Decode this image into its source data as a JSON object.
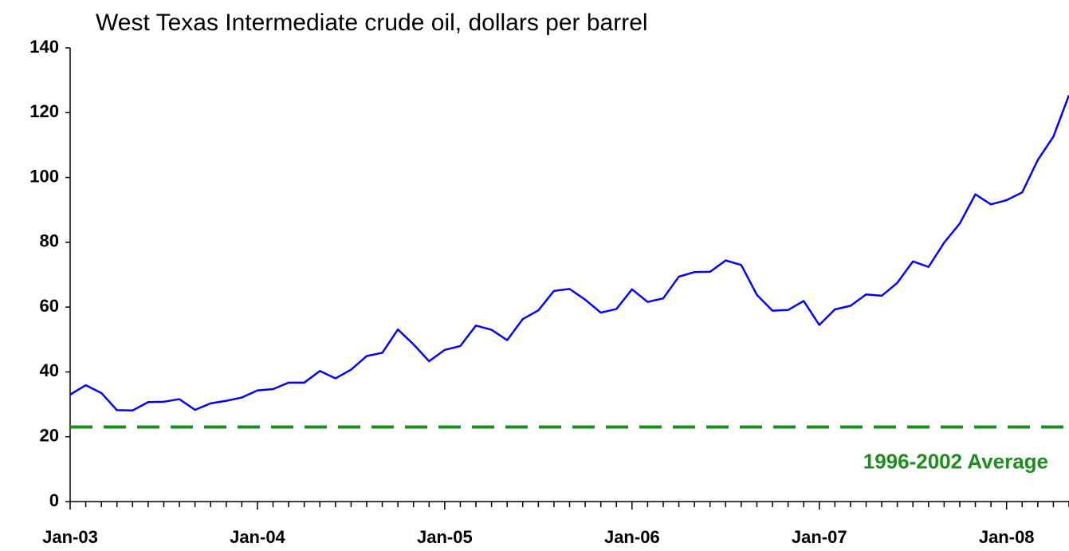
{
  "chart_data": {
    "type": "line",
    "title": "West Texas Intermediate crude oil, dollars per barrel",
    "categories": [
      "Jan-03",
      null,
      null,
      null,
      null,
      null,
      null,
      null,
      null,
      null,
      null,
      null,
      "Jan-04",
      null,
      null,
      null,
      null,
      null,
      null,
      null,
      null,
      null,
      null,
      null,
      "Jan-05",
      null,
      null,
      null,
      null,
      null,
      null,
      null,
      null,
      null,
      null,
      null,
      "Jan-06",
      null,
      null,
      null,
      null,
      null,
      null,
      null,
      null,
      null,
      null,
      null,
      "Jan-07",
      null,
      null,
      null,
      null,
      null,
      null,
      null,
      null,
      null,
      null,
      null,
      "Jan-08",
      null,
      null,
      null,
      null
    ],
    "series": [
      {
        "color": "#0000ff",
        "values": [
          33.0,
          35.9,
          33.5,
          28.2,
          28.1,
          30.7,
          30.8,
          31.6,
          28.3,
          30.3,
          31.1,
          32.1,
          34.3,
          34.7,
          36.7,
          36.7,
          40.3,
          38.0,
          40.7,
          44.9,
          45.9,
          53.1,
          48.5,
          43.3,
          46.8,
          48.0,
          54.3,
          53.0,
          49.8,
          56.3,
          59.0,
          65.0,
          65.6,
          62.3,
          58.3,
          59.4,
          65.5,
          61.6,
          62.7,
          69.4,
          70.8,
          70.9,
          74.4,
          73.0,
          63.8,
          58.9,
          59.1,
          61.9,
          54.5,
          59.3,
          60.4,
          63.9,
          63.5,
          67.5,
          74.1,
          72.4,
          79.9,
          85.8,
          94.8,
          91.7,
          93.0,
          95.4,
          105.4,
          112.6,
          125.4
        ]
      }
    ],
    "reference_lines": [
      {
        "value": 23,
        "label": "1996-2002 Average",
        "color": "#1e8c1e",
        "dashed": true
      }
    ],
    "ylim": [
      0,
      140
    ],
    "yticks": [
      0,
      20,
      40,
      60,
      80,
      100,
      120,
      140
    ],
    "grid": false
  }
}
